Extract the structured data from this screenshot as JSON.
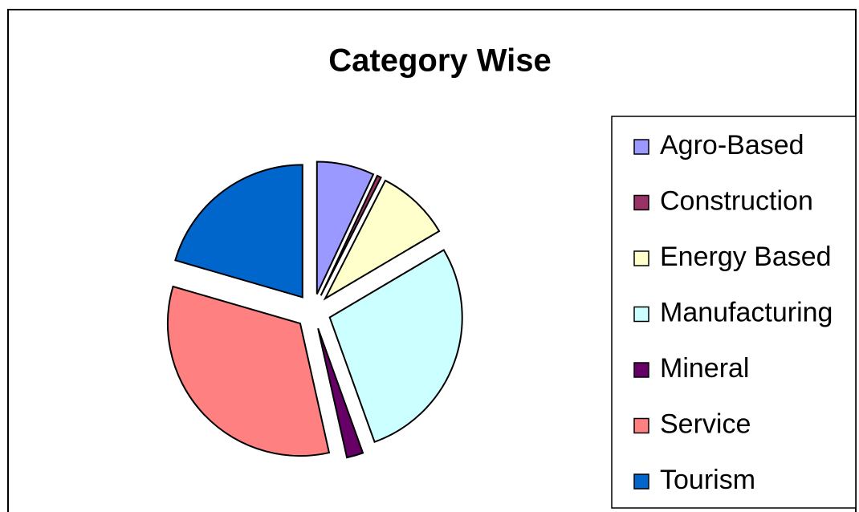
{
  "chart_data": {
    "type": "pie",
    "title": "Category Wise",
    "categories": [
      "Agro-Based",
      "Construction",
      "Energy Based",
      "Manufacturing",
      "Mineral",
      "Service",
      "Tourism"
    ],
    "values": [
      7,
      0.5,
      9,
      28,
      2,
      33,
      20.5
    ],
    "colors": [
      "#9999ff",
      "#993366",
      "#ffffcc",
      "#ccffff",
      "#660066",
      "#ff8080",
      "#0066cc"
    ],
    "legend": "right"
  }
}
